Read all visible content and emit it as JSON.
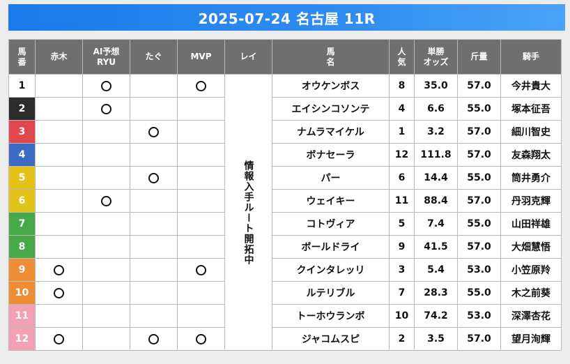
{
  "title": "2025-07-24 名古屋 11R",
  "headers": {
    "umaban_line1": "馬",
    "umaban_line2": "番",
    "akagi": "赤木",
    "ai_line1": "AI予想",
    "ai_line2": "RYU",
    "tagu": "たぐ",
    "mvp": "MVP",
    "rei": "レイ",
    "horse_line1": "馬",
    "horse_line2": "名",
    "pop_line1": "人",
    "pop_line2": "気",
    "odds_line1": "単勝",
    "odds_line2": "オッズ",
    "weight": "斤量",
    "jockey": "騎手"
  },
  "rei_note": "情報入手ルート開拓中",
  "rows": [
    {
      "num": "1",
      "color": "#ffffff",
      "text_color": "#111111",
      "akagi": false,
      "ai": true,
      "tagu": false,
      "mvp": true,
      "horse": "オウケンボス",
      "pop": "8",
      "odds": "35.0",
      "weight": "57.0",
      "jockey": "今井貴大"
    },
    {
      "num": "2",
      "color": "#2b2b2b",
      "text_color": "#ffffff",
      "akagi": false,
      "ai": true,
      "tagu": false,
      "mvp": false,
      "horse": "エイシンコソンテ",
      "pop": "4",
      "odds": "6.6",
      "weight": "55.0",
      "jockey": "塚本征吾"
    },
    {
      "num": "3",
      "color": "#e2474f",
      "text_color": "#ffffff",
      "akagi": false,
      "ai": false,
      "tagu": true,
      "mvp": false,
      "horse": "ナムラマイケル",
      "pop": "1",
      "odds": "3.2",
      "weight": "57.0",
      "jockey": "細川智史"
    },
    {
      "num": "4",
      "color": "#3d6bc4",
      "text_color": "#ffffff",
      "akagi": false,
      "ai": false,
      "tagu": false,
      "mvp": false,
      "horse": "ボナセーラ",
      "pop": "12",
      "odds": "111.8",
      "weight": "57.0",
      "jockey": "友森翔太"
    },
    {
      "num": "5",
      "color": "#e3c31a",
      "text_color": "#ffffff",
      "akagi": false,
      "ai": false,
      "tagu": true,
      "mvp": false,
      "horse": "パー",
      "pop": "6",
      "odds": "14.4",
      "weight": "55.0",
      "jockey": "筒井勇介"
    },
    {
      "num": "6",
      "color": "#e3c31a",
      "text_color": "#ffffff",
      "akagi": false,
      "ai": true,
      "tagu": false,
      "mvp": false,
      "horse": "ウェイキー",
      "pop": "11",
      "odds": "88.4",
      "weight": "57.0",
      "jockey": "丹羽克輝"
    },
    {
      "num": "7",
      "color": "#47a94a",
      "text_color": "#ffffff",
      "akagi": false,
      "ai": false,
      "tagu": false,
      "mvp": false,
      "horse": "コトヴィア",
      "pop": "5",
      "odds": "7.4",
      "weight": "55.0",
      "jockey": "山田祥雄"
    },
    {
      "num": "8",
      "color": "#47a94a",
      "text_color": "#ffffff",
      "akagi": false,
      "ai": false,
      "tagu": false,
      "mvp": false,
      "horse": "ボールドライ",
      "pop": "9",
      "odds": "41.5",
      "weight": "57.0",
      "jockey": "大畑慧悟"
    },
    {
      "num": "9",
      "color": "#ee8d35",
      "text_color": "#ffffff",
      "akagi": true,
      "ai": false,
      "tagu": false,
      "mvp": true,
      "horse": "クインタレッリ",
      "pop": "3",
      "odds": "5.4",
      "weight": "53.0",
      "jockey": "小笠原羚"
    },
    {
      "num": "10",
      "color": "#ee8d35",
      "text_color": "#ffffff",
      "akagi": true,
      "ai": false,
      "tagu": false,
      "mvp": false,
      "horse": "ルテリブル",
      "pop": "7",
      "odds": "28.3",
      "weight": "55.0",
      "jockey": "木之前葵"
    },
    {
      "num": "11",
      "color": "#f2a0b3",
      "text_color": "#ffffff",
      "akagi": false,
      "ai": false,
      "tagu": false,
      "mvp": false,
      "horse": "トーホウランボ",
      "pop": "10",
      "odds": "74.2",
      "weight": "53.0",
      "jockey": "深澤杏花"
    },
    {
      "num": "12",
      "color": "#f2a0b3",
      "text_color": "#ffffff",
      "akagi": true,
      "ai": false,
      "tagu": true,
      "mvp": true,
      "horse": "ジャコムスピ",
      "pop": "2",
      "odds": "3.5",
      "weight": "57.0",
      "jockey": "望月洵輝"
    }
  ]
}
